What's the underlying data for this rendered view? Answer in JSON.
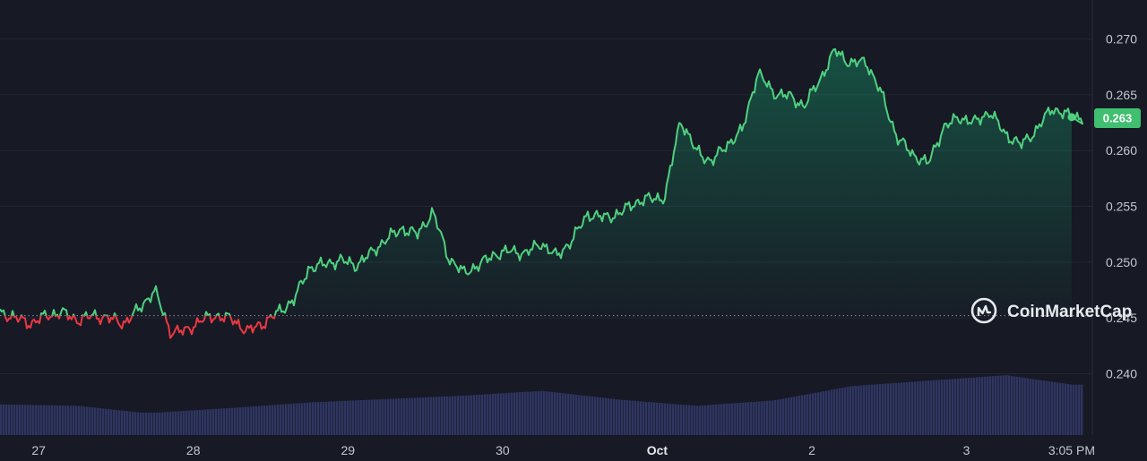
{
  "watermark": {
    "label": "CoinMarketCap",
    "icon": "coinmarketcap-logo-icon"
  },
  "colors": {
    "background": "#171924",
    "up": "#16c784",
    "up_line": "#4fd07f",
    "down": "#ea3943",
    "volume": "#2f3561",
    "grid": "#232634",
    "badge": "#3fbf6f"
  },
  "chart_data": {
    "type": "line",
    "title": "",
    "xlabel": "",
    "ylabel": "",
    "ylim": [
      0.2345,
      0.2735
    ],
    "y_ticks": [
      "0.240",
      "0.245",
      "0.250",
      "0.255",
      "0.260",
      "0.265",
      "0.270"
    ],
    "x_ticks": [
      {
        "t": 0.25,
        "label": "27"
      },
      {
        "t": 1.25,
        "label": "28"
      },
      {
        "t": 2.25,
        "label": "29"
      },
      {
        "t": 3.25,
        "label": "30"
      },
      {
        "t": 4.25,
        "label": "Oct"
      },
      {
        "t": 5.25,
        "label": "2"
      },
      {
        "t": 6.25,
        "label": "3"
      },
      {
        "t": 6.93,
        "label": "3:05 PM"
      }
    ],
    "t_range": [
      0,
      7.0
    ],
    "baseline": 0.2452,
    "current_price": "0.263",
    "grid": true,
    "series": [
      {
        "t": [
          0.0,
          0.1,
          0.2,
          0.3,
          0.4,
          0.5,
          0.6,
          0.7,
          0.8,
          0.9,
          1.0,
          1.1,
          1.2,
          1.3,
          1.4,
          1.5,
          1.6,
          1.7,
          1.8,
          1.9,
          2.0,
          2.1,
          2.2,
          2.3,
          2.4,
          2.5,
          2.6,
          2.7,
          2.8,
          2.9,
          3.0,
          3.1,
          3.2,
          3.3,
          3.4,
          3.5,
          3.6,
          3.7,
          3.8,
          3.9,
          4.0,
          4.1,
          4.2,
          4.3,
          4.4,
          4.5,
          4.6,
          4.7,
          4.8,
          4.9,
          5.0,
          5.1,
          5.2,
          5.3,
          5.4,
          5.5,
          5.6,
          5.7,
          5.8,
          5.9,
          6.0,
          6.1,
          6.2,
          6.3,
          6.4,
          6.5,
          6.6,
          6.7,
          6.8,
          6.9,
          6.93
        ],
        "y": [
          0.2455,
          0.245,
          0.2445,
          0.2452,
          0.2455,
          0.2448,
          0.2452,
          0.245,
          0.2445,
          0.2458,
          0.2475,
          0.2438,
          0.2438,
          0.2448,
          0.2452,
          0.2449,
          0.2438,
          0.2445,
          0.2455,
          0.2466,
          0.2495,
          0.2498,
          0.2502,
          0.2497,
          0.2508,
          0.2521,
          0.253,
          0.2525,
          0.2545,
          0.2504,
          0.249,
          0.2498,
          0.2507,
          0.251,
          0.2508,
          0.2517,
          0.2505,
          0.252,
          0.2543,
          0.254,
          0.2543,
          0.2553,
          0.2557,
          0.2558,
          0.2628,
          0.26,
          0.259,
          0.2605,
          0.2618,
          0.267,
          0.2652,
          0.2649,
          0.264,
          0.2663,
          0.269,
          0.2678,
          0.268,
          0.2651,
          0.2612,
          0.2597,
          0.2588,
          0.262,
          0.263,
          0.2625,
          0.2635,
          0.2615,
          0.2605,
          0.2618,
          0.2638,
          0.2632,
          0.263
        ]
      }
    ],
    "volume": {
      "t": [
        0,
        0.5,
        0.9,
        1.0,
        1.5,
        2.0,
        2.5,
        3.0,
        3.5,
        4.0,
        4.5,
        5.0,
        5.5,
        6.0,
        6.5,
        6.93
      ],
      "v": [
        0.45,
        0.43,
        0.33,
        0.33,
        0.4,
        0.48,
        0.53,
        0.58,
        0.65,
        0.52,
        0.43,
        0.51,
        0.72,
        0.8,
        0.88,
        0.74
      ]
    }
  }
}
